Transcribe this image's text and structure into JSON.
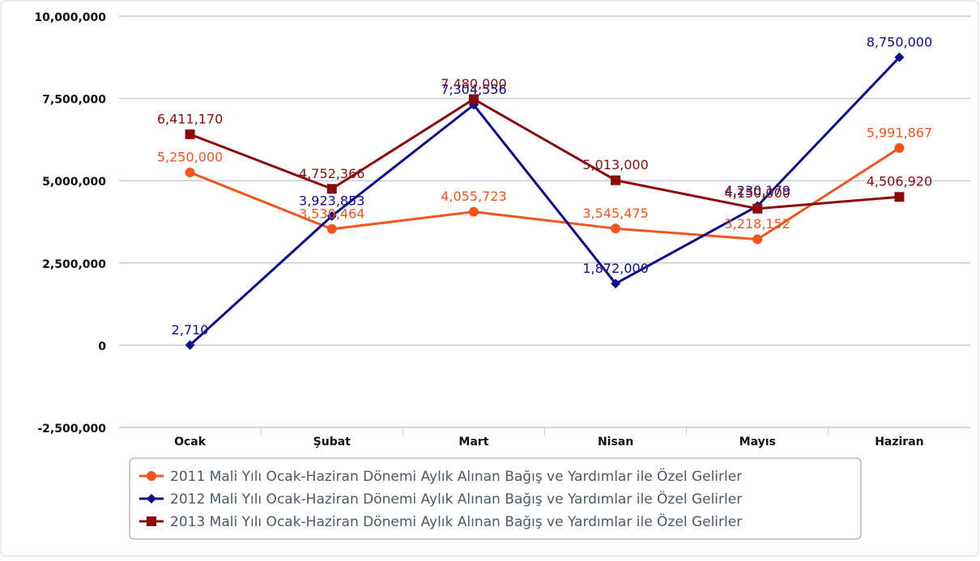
{
  "chart_data": {
    "type": "line",
    "categories": [
      "Ocak",
      "Şubat",
      "Mart",
      "Nisan",
      "Mayıs",
      "Haziran"
    ],
    "series": [
      {
        "name": "2011 Mali Yılı Ocak-Haziran Dönemi Aylık Alınan Bağış ve Yardımlar ile Özel Gelirler",
        "color": "#f5541c",
        "marker": "circle",
        "values": [
          5250000,
          3530464,
          4055723,
          3545475,
          3218152,
          5991867
        ],
        "value_labels": [
          "5,250,000",
          "3,530,464",
          "4,055,723",
          "3,545,475",
          "3,218,152",
          "5,991,867"
        ]
      },
      {
        "name": "2012 Mali Yılı Ocak-Haziran Dönemi Aylık Alınan Bağış ve Yardımlar ile Özel Gelirler",
        "color": "#0c0c8c",
        "marker": "diamond",
        "values": [
          2710,
          3923853,
          7304556,
          1872000,
          4230179,
          8750000
        ],
        "value_labels": [
          "2,710",
          "3,923,853",
          "7,304,556",
          "1,872,000",
          "4,230,179",
          "8,750,000"
        ]
      },
      {
        "name": "2013 Mali Yılı Ocak-Haziran Dönemi Aylık Alınan Bağış ve Yardımlar ile Özel Gelirler",
        "color": "#8b0b0b",
        "marker": "square",
        "values": [
          6411170,
          4752366,
          7480000,
          5013000,
          4150000,
          4506920
        ],
        "value_labels": [
          "6,411,170",
          "4,752,366",
          "7,480,000",
          "5,013,000",
          "4,150,000",
          "4,506,920"
        ]
      }
    ],
    "ylim": [
      -2500000,
      10000000
    ],
    "yticks": [
      {
        "value": -2500000,
        "label": "-2,500,000"
      },
      0,
      {
        "value": 2500000,
        "label": "2,500,000"
      },
      {
        "value": 5000000,
        "label": "5,000,000"
      },
      {
        "value": 7500000,
        "label": "7,500,000"
      },
      {
        "value": 10000000,
        "label": "10,000,000"
      }
    ],
    "grid": true,
    "legend": "bottom"
  }
}
